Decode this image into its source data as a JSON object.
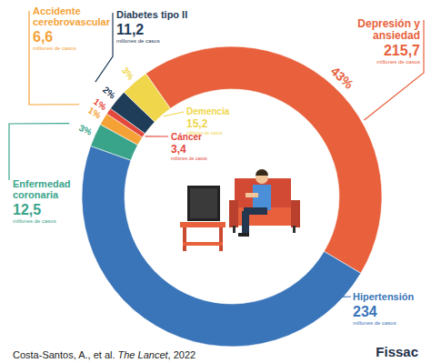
{
  "chart_data": {
    "type": "donut",
    "categories": [
      "Depresión y\nansiedad",
      "Hipertensión",
      "Enfermedad\ncoronaria",
      "Accidente\ncerebrovascular",
      "Cáncer",
      "Diabetes tipo II",
      "Demencia"
    ],
    "values": [
      215.7,
      234,
      12.5,
      6.6,
      3.4,
      11.2,
      15.2
    ],
    "value_labels": [
      "215,7",
      "234",
      "12,5",
      "6,6",
      "3,4",
      "11,2",
      "15,2"
    ],
    "percent_labels": [
      "43%",
      null,
      "3%",
      "1%",
      "1%",
      "2%",
      "3%"
    ],
    "unit": "millones de casos",
    "colors": [
      "#e8613c",
      "#3b75b9",
      "#3aa48b",
      "#f4a236",
      "#e4473b",
      "#1f3c58",
      "#efd64b"
    ],
    "data_labels": true,
    "source": [
      "Costa-Santos, A., et al.",
      "The Lancet",
      ", 2022"
    ],
    "logo": "Fissac"
  }
}
